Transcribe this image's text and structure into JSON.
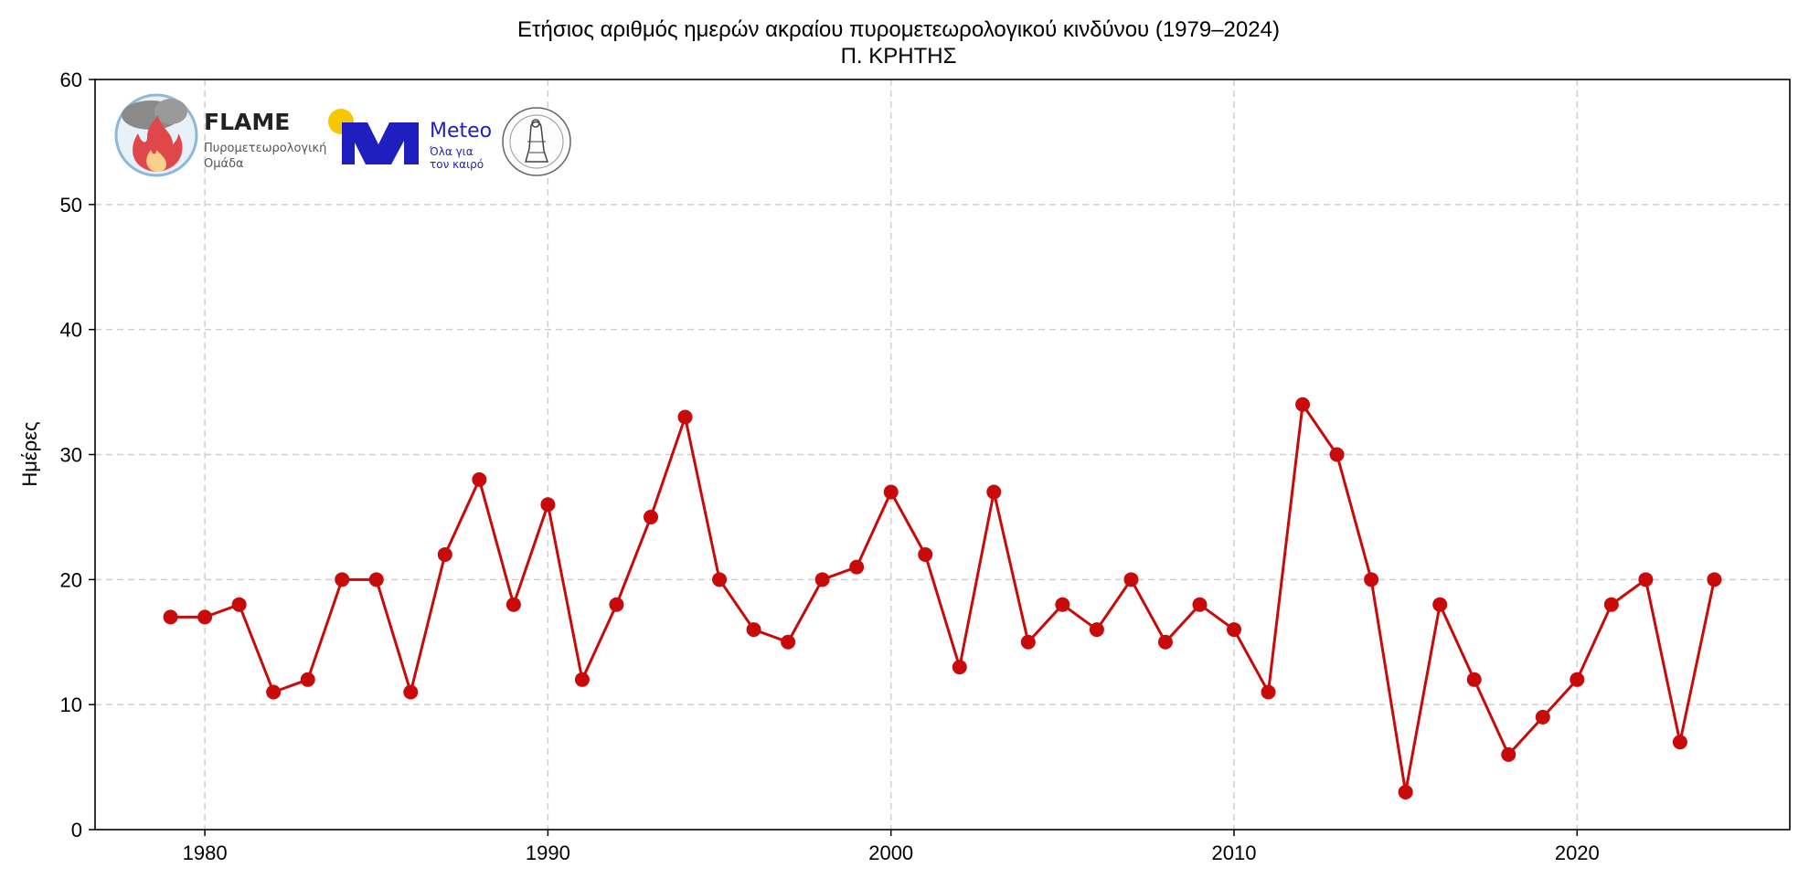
{
  "chart_data": {
    "type": "line",
    "title": "Ετήσιος αριθμός ημερών ακραίου πυρομετεωρολογικού κινδύνου (1979–2024)",
    "subtitle": "Π. ΚΡΗΤΗΣ",
    "xlabel": "",
    "ylabel": "Ημέρες",
    "xlim": [
      1976.8,
      2026.2
    ],
    "ylim": [
      0,
      60
    ],
    "x_ticks": [
      1980,
      1990,
      2000,
      2010,
      2020
    ],
    "y_ticks": [
      0,
      10,
      20,
      30,
      40,
      50,
      60
    ],
    "grid": true,
    "grid_style": "dashed",
    "series": [
      {
        "color": "#c80a0a",
        "marker": "circle",
        "x": [
          1979,
          1980,
          1981,
          1982,
          1983,
          1984,
          1985,
          1986,
          1987,
          1988,
          1989,
          1990,
          1991,
          1992,
          1993,
          1994,
          1995,
          1996,
          1997,
          1998,
          1999,
          2000,
          2001,
          2002,
          2003,
          2004,
          2005,
          2006,
          2007,
          2008,
          2009,
          2010,
          2011,
          2012,
          2013,
          2014,
          2015,
          2016,
          2017,
          2018,
          2019,
          2020,
          2021,
          2022,
          2023,
          2024
        ],
        "y": [
          17,
          17,
          18,
          11,
          12,
          20,
          20,
          11,
          22,
          28,
          18,
          26,
          12,
          18,
          25,
          33,
          20,
          16,
          15,
          20,
          21,
          27,
          22,
          13,
          27,
          15,
          18,
          16,
          20,
          15,
          18,
          16,
          11,
          34,
          30,
          20,
          3,
          18,
          12,
          6,
          9,
          12,
          18,
          20,
          7,
          20
        ]
      }
    ]
  },
  "logos": {
    "flame": {
      "name": "FLAME",
      "line1": "Πυρομετεωρολογική",
      "line2": "Ομάδα"
    },
    "meteo": {
      "name": "Meteo",
      "line1": "Όλα για",
      "line2": "τον καιρό",
      "accent": "#1f1fbf",
      "sun": "#f5c800"
    },
    "observatory": {
      "icon": "observatory-seal-icon"
    }
  }
}
